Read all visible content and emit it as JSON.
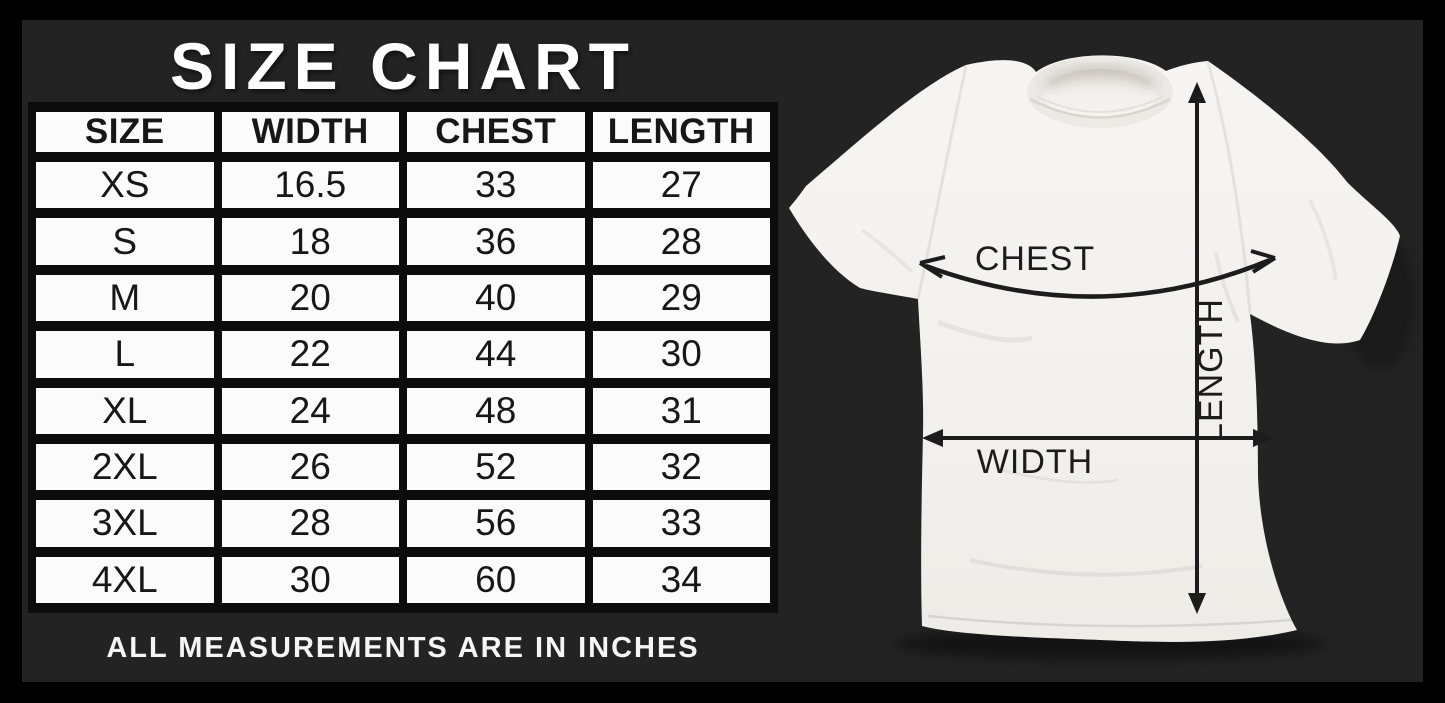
{
  "page": {
    "title": "SIZE CHART",
    "footer_note": "ALL MEASUREMENTS ARE IN INCHES"
  },
  "table": {
    "headers": [
      "SIZE",
      "WIDTH",
      "CHEST",
      "LENGTH"
    ],
    "rows": [
      [
        "XS",
        "16.5",
        "33",
        "27"
      ],
      [
        "S",
        "18",
        "36",
        "28"
      ],
      [
        "M",
        "20",
        "40",
        "29"
      ],
      [
        "L",
        "22",
        "44",
        "30"
      ],
      [
        "XL",
        "24",
        "48",
        "31"
      ],
      [
        "2XL",
        "26",
        "52",
        "32"
      ],
      [
        "3XL",
        "28",
        "56",
        "33"
      ],
      [
        "4XL",
        "30",
        "60",
        "34"
      ]
    ],
    "units": "inches"
  },
  "diagram": {
    "chest_label": "CHEST",
    "width_label": "WIDTH",
    "length_label": "LENGTH"
  },
  "colors": {
    "frame": "#000000",
    "background": "#232323",
    "table_cell": "#fbfbfb",
    "table_border": "#0c0c0c",
    "table_text": "#171717",
    "title_text": "#ffffff",
    "shirt": "#f3f1ee",
    "arrow": "#1c1c1c"
  }
}
